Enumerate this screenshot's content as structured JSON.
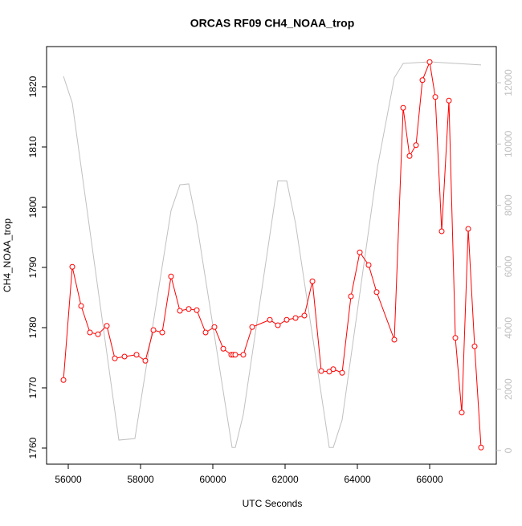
{
  "chart_data": {
    "type": "line",
    "title": "ORCAS RF09 CH4_NOAA_trop",
    "x_label": "UTC Seconds",
    "y_label": "CH4_NOAA_trop",
    "xlim": [
      55400,
      67844
    ],
    "xticks": [
      56000,
      58000,
      60000,
      62000,
      64000,
      66000
    ],
    "ylim": [
      1757.33,
      1826.67
    ],
    "yticks": [
      1760,
      1770,
      1780,
      1790,
      1800,
      1810,
      1820
    ],
    "y2lim": [
      -445,
      13179
    ],
    "y2ticks": [
      0,
      2000,
      4000,
      6000,
      8000,
      10000,
      12000
    ],
    "series": [
      {
        "color": "#ff0000",
        "marker": "circle",
        "x": [
          55867,
          56111,
          56356,
          56600,
          56822,
          57067,
          57289,
          57556,
          57889,
          58133,
          58356,
          58600,
          58844,
          59089,
          59333,
          59556,
          59800,
          60044,
          60289,
          60511,
          60567,
          60622,
          60844,
          61089,
          61578,
          61800,
          62044,
          62289,
          62533,
          62756,
          63000,
          63222,
          63333,
          63578,
          63822,
          64067,
          64311,
          64533,
          65022,
          65267,
          65444,
          65622,
          65800,
          66000,
          66156,
          66333,
          66533,
          66711,
          66889,
          67067,
          67244,
          67422
        ],
        "values": [
          1771.3,
          1790.1,
          1783.6,
          1779.2,
          1778.9,
          1780.3,
          1774.9,
          1775.2,
          1775.5,
          1774.5,
          1779.6,
          1779.2,
          1788.5,
          1782.8,
          1783.1,
          1782.9,
          1779.2,
          1780.1,
          1776.5,
          1775.5,
          1775.5,
          1775.5,
          1775.5,
          1780.1,
          1781.3,
          1780.4,
          1781.3,
          1781.6,
          1782.0,
          1787.7,
          1772.8,
          1772.7,
          1773.1,
          1772.5,
          1785.2,
          1792.5,
          1790.4,
          1785.9,
          1778.0,
          1816.5,
          1808.5,
          1810.3,
          1821.1,
          1824.1,
          1818.3,
          1796.0,
          1817.7,
          1778.3,
          1765.9,
          1796.4,
          1776.9,
          1760.1
        ]
      },
      {
        "color": "#c0c0c0",
        "axis": "y2",
        "x": [
          55867,
          56111,
          57400,
          57844,
          58844,
          59089,
          59333,
          59556,
          60533,
          60622,
          60844,
          61800,
          62044,
          62289,
          63222,
          63333,
          63578,
          64556,
          65022,
          65267,
          66000,
          67422
        ],
        "values": [
          12210,
          11340,
          340,
          390,
          7830,
          8670,
          8700,
          7410,
          100,
          100,
          1180,
          8800,
          8800,
          7410,
          100,
          100,
          1000,
          9250,
          12160,
          12630,
          12680,
          12580
        ]
      }
    ]
  }
}
